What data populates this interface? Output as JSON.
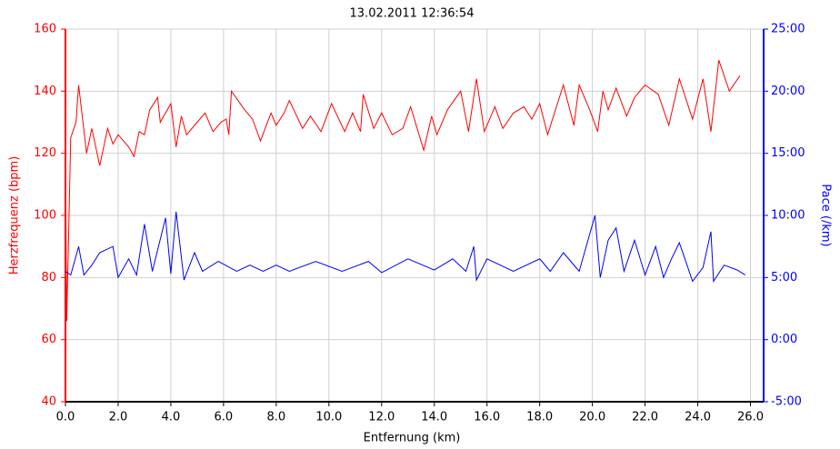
{
  "chart_data": {
    "type": "line",
    "title": "13.02.2011 12:36:54",
    "x_label": "Entfernung (km)",
    "y_label": "Herzfrequenz (bpm)",
    "y2_label": "Pace (/km)",
    "xlim": [
      0,
      26.5
    ],
    "xticks": [
      {
        "value": 0,
        "label": "0.0"
      },
      {
        "value": 2,
        "label": "2.0"
      },
      {
        "value": 4,
        "label": "4.0"
      },
      {
        "value": 6,
        "label": "6.0"
      },
      {
        "value": 8,
        "label": "8.0"
      },
      {
        "value": 10,
        "label": "10.0"
      },
      {
        "value": 12,
        "label": "12.0"
      },
      {
        "value": 14,
        "label": "14.0"
      },
      {
        "value": 16,
        "label": "16.0"
      },
      {
        "value": 18,
        "label": "18.0"
      },
      {
        "value": 20,
        "label": "20.0"
      },
      {
        "value": 22,
        "label": "22.0"
      },
      {
        "value": 24,
        "label": "24.0"
      },
      {
        "value": 26,
        "label": "26.0"
      }
    ],
    "ylim": [
      40,
      160
    ],
    "yticks": [
      40,
      60,
      80,
      100,
      120,
      140,
      160
    ],
    "y2lim": [
      -5,
      25
    ],
    "y2ticks": [
      {
        "value": -5,
        "label": "-5:00"
      },
      {
        "value": 0,
        "label": "0:00"
      },
      {
        "value": 5,
        "label": "5:00"
      },
      {
        "value": 10,
        "label": "10:00"
      },
      {
        "value": 15,
        "label": "15:00"
      },
      {
        "value": 20,
        "label": "20:00"
      },
      {
        "value": 25,
        "label": "25:00"
      }
    ],
    "grid": true,
    "y_color": "#ff0000",
    "y2_color": "#0000ff",
    "series": [
      {
        "name": "Herzfrequenz",
        "color": "#ff0000",
        "axis": "y",
        "x": [
          0,
          0.05,
          0.2,
          0.4,
          0.5,
          0.8,
          1.0,
          1.3,
          1.6,
          1.8,
          2.0,
          2.4,
          2.6,
          2.8,
          3.0,
          3.2,
          3.5,
          3.6,
          4.0,
          4.2,
          4.4,
          4.6,
          5.0,
          5.3,
          5.6,
          5.9,
          6.1,
          6.2,
          6.3,
          6.8,
          7.1,
          7.4,
          7.8,
          8.0,
          8.3,
          8.5,
          9.0,
          9.3,
          9.7,
          10.1,
          10.6,
          10.9,
          11.2,
          11.3,
          11.7,
          12.0,
          12.4,
          12.8,
          13.1,
          13.6,
          13.9,
          14.1,
          14.5,
          15.0,
          15.3,
          15.6,
          15.9,
          16.3,
          16.6,
          17.0,
          17.4,
          17.7,
          18.0,
          18.3,
          18.6,
          18.9,
          19.3,
          19.5,
          19.9,
          20.2,
          20.4,
          20.6,
          20.9,
          21.3,
          21.6,
          22.0,
          22.5,
          22.9,
          23.3,
          23.8,
          24.2,
          24.5,
          24.8,
          25.2,
          25.6
        ],
        "values": [
          120,
          66,
          125,
          130,
          142,
          120,
          128,
          116,
          128,
          123,
          126,
          122,
          119,
          127,
          126,
          134,
          138,
          130,
          136,
          122,
          132,
          126,
          130,
          133,
          127,
          130,
          131,
          126,
          140,
          134,
          131,
          124,
          133,
          129,
          133,
          137,
          128,
          132,
          127,
          136,
          127,
          133,
          127,
          139,
          128,
          133,
          126,
          128,
          135,
          121,
          132,
          126,
          134,
          140,
          127,
          144,
          127,
          135,
          128,
          133,
          135,
          131,
          136,
          126,
          134,
          142,
          129,
          142,
          134,
          127,
          140,
          134,
          141,
          132,
          138,
          142,
          139,
          129,
          144,
          131,
          144,
          127,
          150,
          140,
          145
        ]
      },
      {
        "name": "Pace",
        "color": "#0000ff",
        "axis": "y2",
        "x": [
          0,
          0.2,
          0.5,
          0.7,
          1.0,
          1.3,
          1.8,
          2.0,
          2.4,
          2.7,
          3.0,
          3.3,
          3.8,
          4.0,
          4.2,
          4.5,
          4.9,
          5.2,
          5.8,
          6.5,
          7.0,
          7.5,
          8.0,
          8.5,
          9.5,
          10.5,
          11.5,
          12.0,
          13.0,
          14.0,
          14.7,
          15.2,
          15.5,
          15.6,
          16.0,
          17.0,
          18.0,
          18.4,
          18.9,
          19.5,
          20.1,
          20.3,
          20.6,
          20.9,
          21.2,
          21.6,
          22.0,
          22.4,
          22.7,
          23.0,
          23.3,
          23.8,
          24.2,
          24.5,
          24.6,
          25.0,
          25.5,
          25.8
        ],
        "values": [
          5.5,
          5.2,
          7.5,
          5.2,
          6,
          7,
          7.5,
          5,
          6.5,
          5.2,
          9.3,
          5.5,
          9.8,
          5.3,
          10.3,
          4.8,
          7,
          5.5,
          6.3,
          5.5,
          6,
          5.5,
          6,
          5.5,
          6.3,
          5.5,
          6.3,
          5.4,
          6.5,
          5.6,
          6.5,
          5.5,
          7.5,
          4.8,
          6.5,
          5.5,
          6.5,
          5.5,
          7,
          5.5,
          10,
          5,
          8,
          9,
          5.5,
          8,
          5.2,
          7.5,
          5,
          6.5,
          7.8,
          4.7,
          5.8,
          8.7,
          4.7,
          6,
          5.6,
          5.2
        ]
      }
    ]
  }
}
